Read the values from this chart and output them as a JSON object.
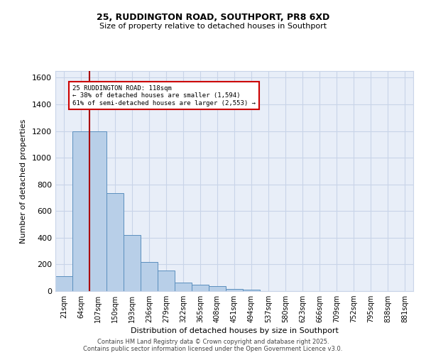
{
  "title1": "25, RUDDINGTON ROAD, SOUTHPORT, PR8 6XD",
  "title2": "Size of property relative to detached houses in Southport",
  "xlabel": "Distribution of detached houses by size in Southport",
  "ylabel": "Number of detached properties",
  "categories": [
    "21sqm",
    "64sqm",
    "107sqm",
    "150sqm",
    "193sqm",
    "236sqm",
    "279sqm",
    "322sqm",
    "365sqm",
    "408sqm",
    "451sqm",
    "494sqm",
    "537sqm",
    "580sqm",
    "623sqm",
    "666sqm",
    "709sqm",
    "752sqm",
    "795sqm",
    "838sqm",
    "881sqm"
  ],
  "bar_values": [
    110,
    1195,
    1195,
    735,
    420,
    220,
    155,
    65,
    50,
    35,
    15,
    10,
    0,
    0,
    0,
    0,
    0,
    0,
    0,
    0,
    0
  ],
  "bar_color": "#b8cfe8",
  "bar_edge_color": "#5b8fbe",
  "grid_color": "#c8d4e8",
  "background_color": "#e8eef8",
  "red_line_x": 1.5,
  "annotation_text": "25 RUDDINGTON ROAD: 118sqm\n← 38% of detached houses are smaller (1,594)\n61% of semi-detached houses are larger (2,553) →",
  "annotation_box_color": "#ffffff",
  "annotation_box_edge": "#cc0000",
  "red_line_color": "#aa0000",
  "footer1": "Contains HM Land Registry data © Crown copyright and database right 2025.",
  "footer2": "Contains public sector information licensed under the Open Government Licence v3.0.",
  "ylim": [
    0,
    1650
  ],
  "yticks": [
    0,
    200,
    400,
    600,
    800,
    1000,
    1200,
    1400,
    1600
  ]
}
